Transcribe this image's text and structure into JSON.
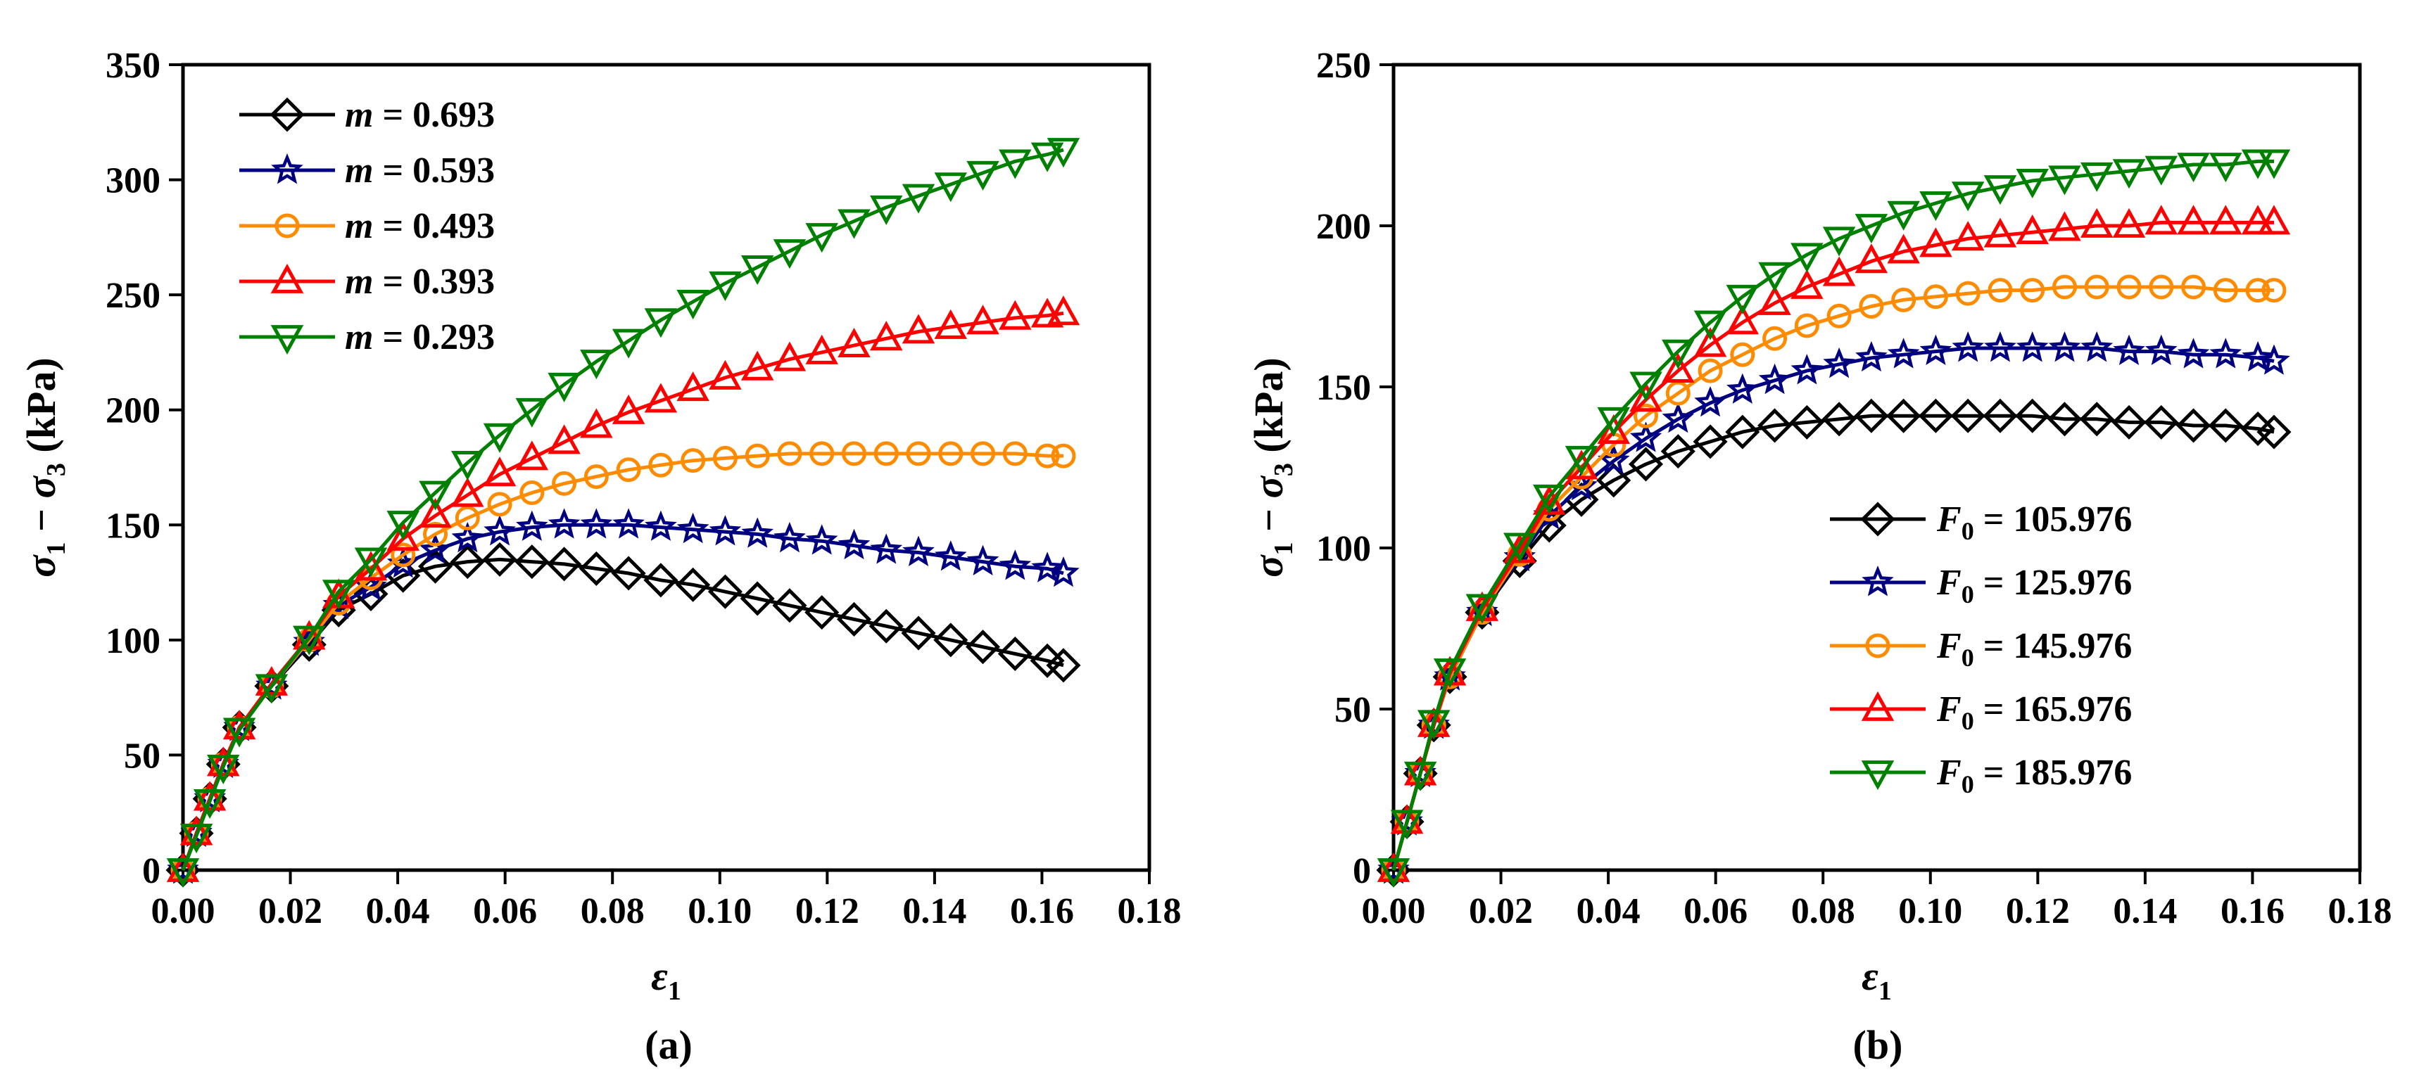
{
  "chart_data": [
    {
      "type": "line",
      "panel_label": "(a)",
      "xlabel": "ε1",
      "ylabel": "σ1 − σ3 (kPa)",
      "xlim": [
        0,
        0.18
      ],
      "ylim": [
        0,
        350
      ],
      "x_ticks": [
        "0.00",
        "0.02",
        "0.04",
        "0.06",
        "0.08",
        "0.10",
        "0.12",
        "0.14",
        "0.16",
        "0.18"
      ],
      "y_ticks": [
        "0",
        "50",
        "100",
        "150",
        "200",
        "250",
        "300",
        "350"
      ],
      "legend_position": "top-left",
      "legend_var": "m",
      "x": [
        0,
        0.0025,
        0.005,
        0.0075,
        0.0105,
        0.0165,
        0.0235,
        0.029,
        0.035,
        0.041,
        0.047,
        0.053,
        0.059,
        0.065,
        0.071,
        0.077,
        0.083,
        0.089,
        0.095,
        0.101,
        0.107,
        0.113,
        0.119,
        0.125,
        0.131,
        0.137,
        0.143,
        0.149,
        0.155,
        0.161,
        0.164
      ],
      "series": [
        {
          "name": "0.693",
          "color": "#000000",
          "marker": "diamond",
          "values": [
            0,
            16,
            31,
            46,
            62,
            80,
            98,
            113,
            120,
            128,
            132,
            134,
            135,
            134,
            133,
            131,
            129,
            126,
            124,
            121,
            118,
            115,
            112,
            109,
            106,
            103,
            100,
            97,
            94,
            91,
            89
          ]
        },
        {
          "name": "0.593",
          "color": "#000080",
          "marker": "star",
          "values": [
            0,
            16,
            31,
            46,
            62,
            80,
            99,
            115,
            123,
            133,
            139,
            144,
            147,
            149,
            150,
            150,
            150,
            149,
            148,
            147,
            146,
            144,
            143,
            141,
            139,
            138,
            136,
            134,
            132,
            131,
            129
          ]
        },
        {
          "name": "0.493",
          "color": "#FF8C00",
          "marker": "circle",
          "values": [
            0,
            16,
            31,
            46,
            62,
            80,
            100,
            116,
            127,
            137,
            146,
            153,
            159,
            164,
            168,
            171,
            174,
            176,
            178,
            179,
            180,
            181,
            181,
            181,
            181,
            181,
            181,
            181,
            181,
            180,
            180
          ]
        },
        {
          "name": "0.393",
          "color": "#FF0000",
          "marker": "triangle-up",
          "values": [
            0,
            16,
            31,
            46,
            62,
            81,
            101,
            119,
            131,
            144,
            154,
            163,
            172,
            179,
            186,
            193,
            199,
            204,
            209,
            214,
            218,
            222,
            225,
            228,
            231,
            234,
            236,
            238,
            240,
            241,
            242
          ]
        },
        {
          "name": "0.293",
          "color": "#008000",
          "marker": "triangle-down",
          "values": [
            0,
            15,
            30,
            45,
            61,
            80,
            101,
            121,
            135,
            151,
            164,
            177,
            189,
            200,
            211,
            221,
            230,
            239,
            247,
            255,
            262,
            269,
            276,
            282,
            288,
            293,
            298,
            303,
            308,
            311,
            313
          ]
        }
      ]
    },
    {
      "type": "line",
      "panel_label": "(b)",
      "xlabel": "ε1",
      "ylabel": "σ1 − σ3 (kPa)",
      "xlim": [
        0,
        0.18
      ],
      "ylim": [
        0,
        250
      ],
      "x_ticks": [
        "0.00",
        "0.02",
        "0.04",
        "0.06",
        "0.08",
        "0.10",
        "0.12",
        "0.14",
        "0.16",
        "0.18"
      ],
      "y_ticks": [
        "0",
        "50",
        "100",
        "150",
        "200",
        "250"
      ],
      "legend_position": "bottom-right",
      "legend_var": "F0",
      "x": [
        0,
        0.0025,
        0.005,
        0.0075,
        0.0105,
        0.0165,
        0.0235,
        0.029,
        0.035,
        0.041,
        0.047,
        0.053,
        0.059,
        0.065,
        0.071,
        0.077,
        0.083,
        0.089,
        0.095,
        0.101,
        0.107,
        0.113,
        0.119,
        0.125,
        0.131,
        0.137,
        0.143,
        0.149,
        0.155,
        0.161,
        0.164
      ],
      "series": [
        {
          "name": "105.976",
          "color": "#000000",
          "marker": "diamond",
          "values": [
            0,
            15,
            30,
            45,
            60,
            80,
            96,
            107,
            115,
            121,
            126,
            130,
            133,
            136,
            138,
            139,
            140,
            141,
            141,
            141,
            141,
            141,
            141,
            140,
            140,
            139,
            139,
            138,
            138,
            137,
            136
          ]
        },
        {
          "name": "125.976",
          "color": "#000080",
          "marker": "star",
          "values": [
            0,
            15,
            30,
            45,
            60,
            80,
            97,
            110,
            119,
            127,
            134,
            140,
            145,
            149,
            152,
            155,
            157,
            159,
            160,
            161,
            162,
            162,
            162,
            162,
            162,
            161,
            161,
            160,
            160,
            159,
            158
          ]
        },
        {
          "name": "145.976",
          "color": "#FF8C00",
          "marker": "circle",
          "values": [
            0,
            15,
            30,
            45,
            60,
            80,
            98,
            112,
            122,
            132,
            141,
            148,
            155,
            160,
            165,
            169,
            172,
            175,
            177,
            178,
            179,
            180,
            180,
            181,
            181,
            181,
            181,
            181,
            180,
            180,
            180
          ]
        },
        {
          "name": "165.976",
          "color": "#FF0000",
          "marker": "triangle-up",
          "values": [
            0,
            15,
            30,
            45,
            61,
            81,
            99,
            114,
            125,
            136,
            146,
            155,
            163,
            170,
            176,
            181,
            185,
            189,
            192,
            194,
            196,
            197,
            198,
            199,
            200,
            200,
            201,
            201,
            201,
            201,
            201
          ]
        },
        {
          "name": "185.976",
          "color": "#008000",
          "marker": "triangle-down",
          "values": [
            0,
            15,
            30,
            46,
            62,
            82,
            101,
            116,
            128,
            140,
            151,
            161,
            170,
            178,
            185,
            191,
            196,
            200,
            204,
            207,
            210,
            212,
            214,
            215,
            216,
            217,
            218,
            219,
            219,
            220,
            220
          ]
        }
      ]
    }
  ]
}
